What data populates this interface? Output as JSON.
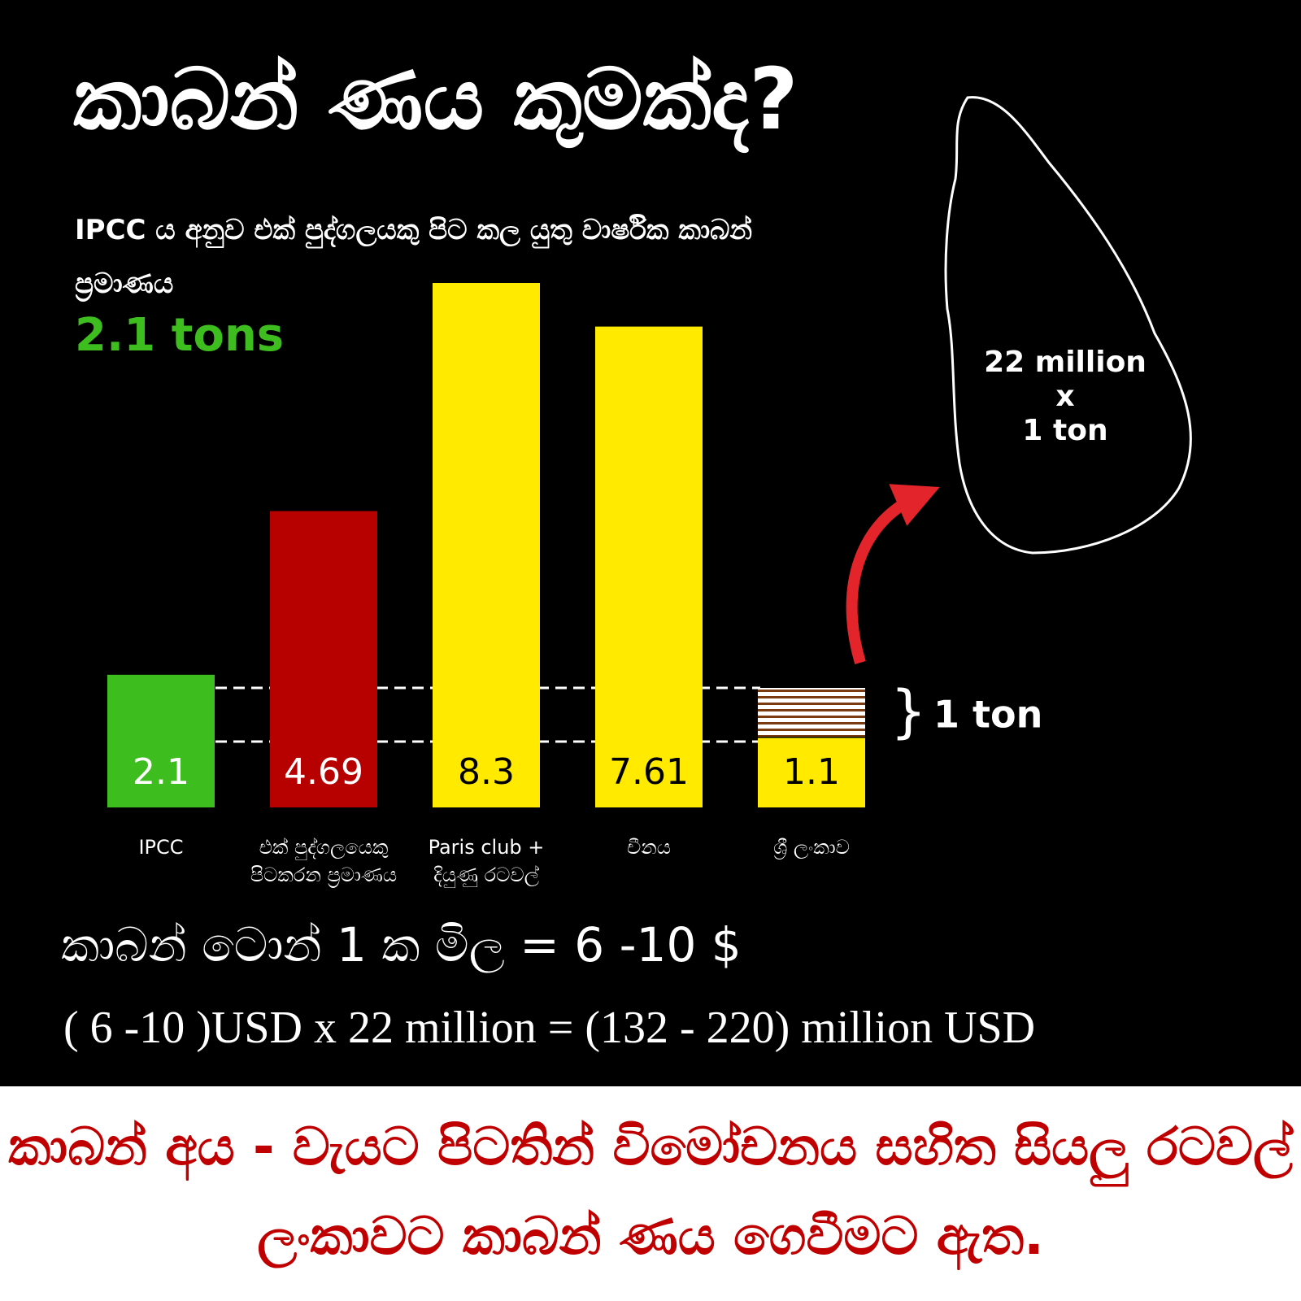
{
  "chart_data": {
    "type": "bar",
    "categories": [
      "IPCC",
      "එක් පුද්ගලයෙකු\nපිටකරන ප්‍රමාණය",
      "Paris club +\nදියුණු රටවල්",
      "චීනය",
      "ශ්‍රී ලංකාව"
    ],
    "values": [
      2.1,
      4.69,
      8.3,
      7.61,
      1.1
    ],
    "colors": [
      "#3dbd1e",
      "#b70000",
      "#ffea00",
      "#ffea00",
      "#ffea00"
    ],
    "label_colors": [
      "#ffffff",
      "#ffffff",
      "#000000",
      "#000000",
      "#000000"
    ],
    "annotation": "1 ton"
  },
  "header": {
    "title": "කාබන් ණය කුමක්ද?",
    "subtitle": "IPCC ය අනුව එක් පුද්ගලයකු පිට කල යුතු වාර්ෂික කාබන්\nප්‍රමාණය",
    "highlight": "2.1 tons"
  },
  "map": {
    "label": "22 million\nx\n1 ton"
  },
  "equations": [
    "කාබන් ටොන් 1 ක මිල  =  6 -10   $",
    "( 6 -10 )USD x 22 million   =  (132 - 220) million USD"
  ],
  "footer": [
    "කාබන් අය - වැයට පිටතින් විමෝචනය සහිත සියලු රටවල්",
    "ලංකාවට කාබන් ණය ගෙවීමට ඇත."
  ]
}
